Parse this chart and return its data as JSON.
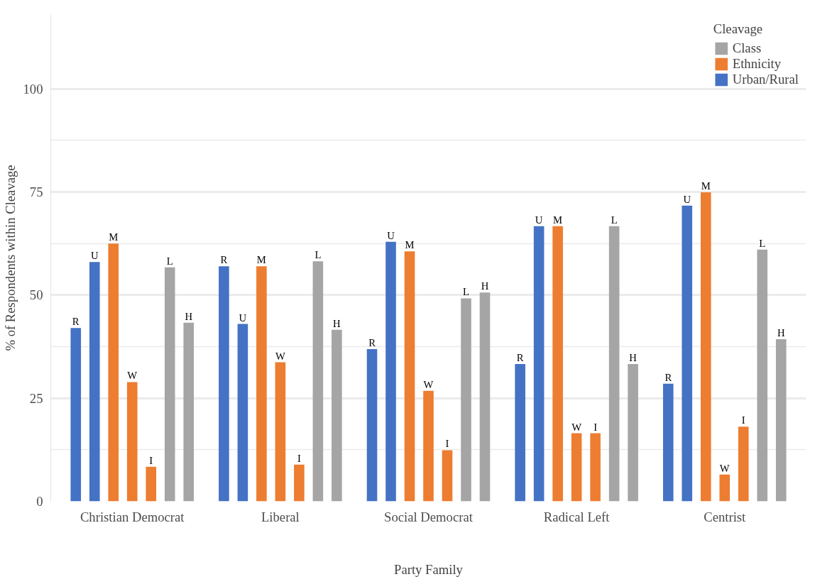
{
  "chart_data": {
    "type": "bar",
    "xlabel": "Party Family",
    "ylabel": "% of Respondents within Cleavage",
    "legend_title": "Cleavage",
    "categories": [
      "Christian Democrat",
      "Liberal",
      "Social Democrat",
      "Radical Left",
      "Centrist"
    ],
    "series": [
      {
        "name": "Urban/Rural",
        "color": "#4472c4",
        "values": [
          42.0,
          57.0,
          36.9,
          33.3,
          28.5
        ],
        "value_labels": [
          "R",
          "R",
          "R",
          "R",
          "R"
        ]
      },
      {
        "color": "#4472c4",
        "values": [
          58.0,
          43.0,
          62.9,
          66.7,
          71.7
        ],
        "value_labels": [
          "U",
          "U",
          "U",
          "U",
          "U"
        ]
      },
      {
        "name": "Ethnicity",
        "color": "#ed7d31",
        "values": [
          62.5,
          57.0,
          60.6,
          66.7,
          74.9
        ],
        "value_labels": [
          "M",
          "M",
          "M",
          "M",
          "M"
        ]
      },
      {
        "color": "#ed7d31",
        "values": [
          28.9,
          33.7,
          26.8,
          16.5,
          6.5
        ],
        "value_labels": [
          "W",
          "W",
          "W",
          "W",
          "W"
        ]
      },
      {
        "color": "#ed7d31",
        "values": [
          8.4,
          8.9,
          12.4,
          16.5,
          18.1
        ],
        "value_labels": [
          "I",
          "I",
          "I",
          "I",
          "I"
        ]
      },
      {
        "name": "Class",
        "color": "#a5a5a5",
        "values": [
          56.7,
          58.2,
          49.2,
          66.7,
          61.0
        ],
        "value_labels": [
          "L",
          "L",
          "L",
          "L",
          "L"
        ]
      },
      {
        "color": "#a5a5a5",
        "values": [
          43.3,
          41.6,
          50.6,
          33.3,
          39.3
        ],
        "value_labels": [
          "H",
          "H",
          "H",
          "H",
          "H"
        ]
      }
    ],
    "ylim": [
      0,
      118
    ],
    "yticks": [
      0,
      25,
      50,
      75,
      100
    ],
    "grid": "y",
    "legend": "top right"
  }
}
